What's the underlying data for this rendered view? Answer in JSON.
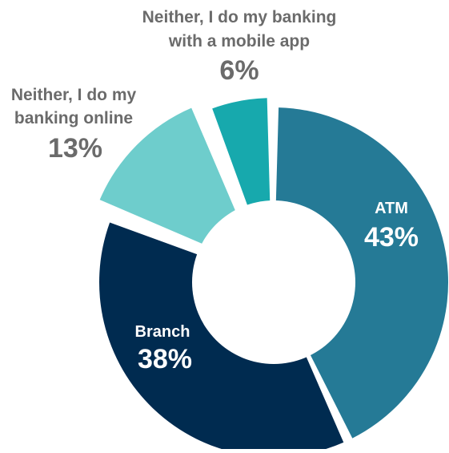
{
  "chart_data": {
    "type": "pie",
    "donut": true,
    "title": "",
    "slices": [
      {
        "name": "ATM",
        "value": 43,
        "label": "43%",
        "color": "#257a96"
      },
      {
        "name": "Branch",
        "value": 38,
        "label": "38%",
        "color": "#002b50"
      },
      {
        "name": "Neither, I do my banking online",
        "value": 13,
        "label": "13%",
        "color": "#6ecdcc"
      },
      {
        "name": "Neither, I do my banking with a mobile app",
        "value": 6,
        "label": "6%",
        "color": "#17a9ad"
      }
    ],
    "label_lines": {
      "atm": [
        "ATM"
      ],
      "branch": [
        "Branch"
      ],
      "online": [
        "Neither, I do my",
        "banking online"
      ],
      "mobile": [
        "Neither, I do my banking",
        "with a mobile app"
      ]
    },
    "legend": "none",
    "grid": false
  }
}
